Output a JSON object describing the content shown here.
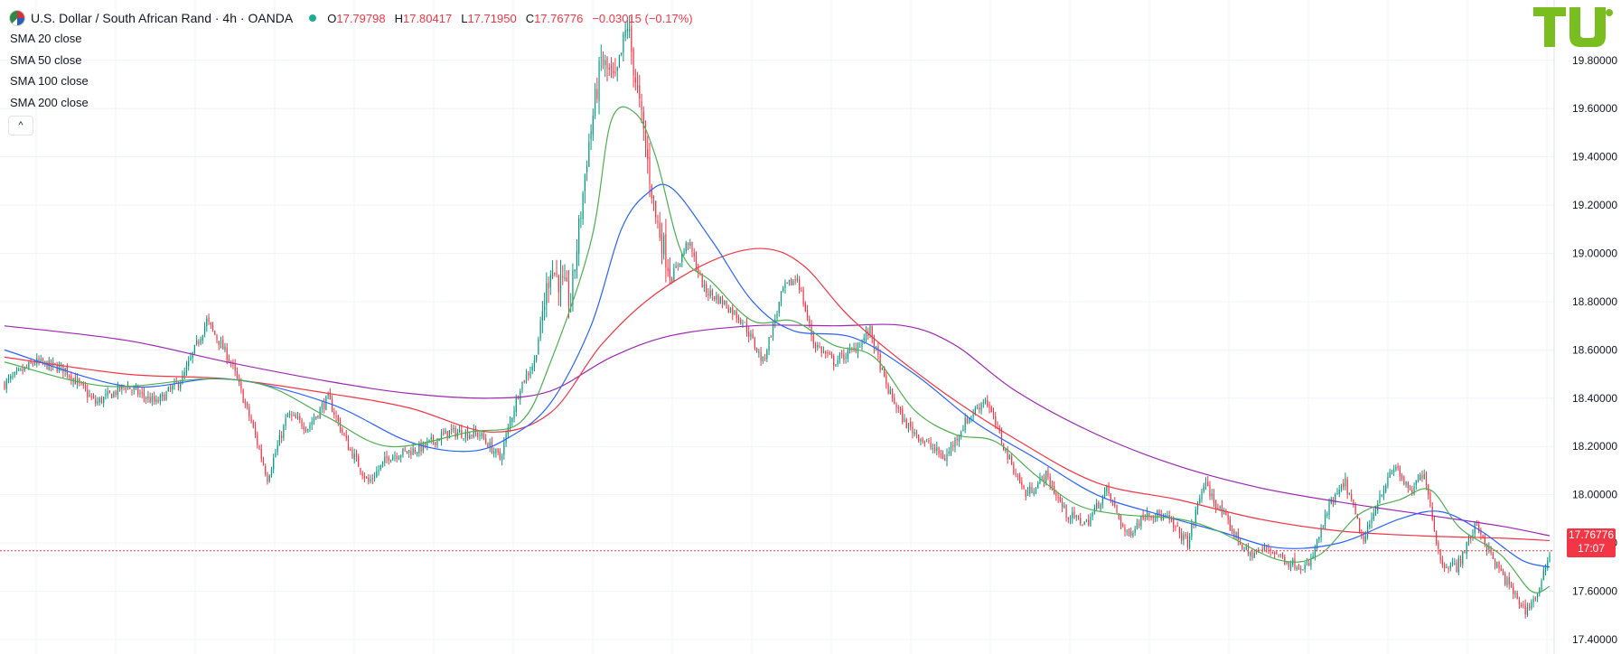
{
  "header": {
    "symbol_title": "U.S. Dollar / South African Rand · 4h · OANDA",
    "open_key": "O",
    "open": "17.79798",
    "high_key": "H",
    "high": "17.80417",
    "low_key": "L",
    "low": "17.71950",
    "close_key": "C",
    "close": "17.76776",
    "change": "−0.03015 (−0.17%)"
  },
  "indicators": [
    "SMA 20 close",
    "SMA 50 close",
    "SMA 100 close",
    "SMA 200 close"
  ],
  "collapse_label": "^",
  "price_tag": {
    "price": "17.76776",
    "countdown": "17:07"
  },
  "colors": {
    "up": "#089981",
    "down": "#f23645",
    "sma20": "#4caf50",
    "sma50": "#2962ff",
    "sma100": "#f23645",
    "sma200": "#9c27b0",
    "logo": "#79bd1e"
  },
  "chart_data": {
    "type": "candlestick",
    "y_ticks": [
      "17.40000",
      "17.60000",
      "17.80000",
      "18.00000",
      "18.20000",
      "18.40000",
      "18.60000",
      "18.80000",
      "19.00000",
      "19.20000",
      "19.40000",
      "19.60000",
      "19.80000"
    ],
    "ylim": [
      17.34,
      20.05
    ],
    "grid": true,
    "last_price": 17.76776,
    "anchor_closes": [
      [
        0,
        18.46
      ],
      [
        15,
        18.55
      ],
      [
        30,
        18.52
      ],
      [
        45,
        18.38
      ],
      [
        60,
        18.45
      ],
      [
        75,
        18.38
      ],
      [
        88,
        18.48
      ],
      [
        100,
        18.72
      ],
      [
        112,
        18.55
      ],
      [
        122,
        18.3
      ],
      [
        130,
        18.07
      ],
      [
        140,
        18.33
      ],
      [
        150,
        18.28
      ],
      [
        160,
        18.4
      ],
      [
        170,
        18.2
      ],
      [
        180,
        18.05
      ],
      [
        190,
        18.16
      ],
      [
        205,
        18.19
      ],
      [
        220,
        18.26
      ],
      [
        235,
        18.25
      ],
      [
        245,
        18.15
      ],
      [
        255,
        18.45
      ],
      [
        262,
        18.55
      ],
      [
        270,
        18.95
      ],
      [
        280,
        18.8
      ],
      [
        288,
        19.4
      ],
      [
        295,
        19.8
      ],
      [
        302,
        19.7
      ],
      [
        308,
        19.95
      ],
      [
        315,
        19.55
      ],
      [
        322,
        19.15
      ],
      [
        330,
        18.9
      ],
      [
        338,
        19.05
      ],
      [
        346,
        18.85
      ],
      [
        355,
        18.8
      ],
      [
        365,
        18.72
      ],
      [
        375,
        18.55
      ],
      [
        385,
        18.85
      ],
      [
        392,
        18.9
      ],
      [
        400,
        18.63
      ],
      [
        410,
        18.55
      ],
      [
        420,
        18.6
      ],
      [
        428,
        18.68
      ],
      [
        436,
        18.45
      ],
      [
        445,
        18.3
      ],
      [
        455,
        18.22
      ],
      [
        465,
        18.15
      ],
      [
        475,
        18.3
      ],
      [
        485,
        18.4
      ],
      [
        495,
        18.18
      ],
      [
        505,
        18.0
      ],
      [
        515,
        18.08
      ],
      [
        525,
        17.92
      ],
      [
        535,
        17.88
      ],
      [
        545,
        18.02
      ],
      [
        555,
        17.83
      ],
      [
        565,
        17.93
      ],
      [
        575,
        17.9
      ],
      [
        585,
        17.8
      ],
      [
        593,
        18.05
      ],
      [
        605,
        17.88
      ],
      [
        615,
        17.75
      ],
      [
        625,
        17.78
      ],
      [
        635,
        17.72
      ],
      [
        645,
        17.7
      ],
      [
        655,
        17.95
      ],
      [
        663,
        18.05
      ],
      [
        672,
        17.8
      ],
      [
        680,
        18.0
      ],
      [
        688,
        18.12
      ],
      [
        695,
        18.0
      ],
      [
        702,
        18.1
      ],
      [
        710,
        17.72
      ],
      [
        718,
        17.7
      ],
      [
        728,
        17.88
      ],
      [
        736,
        17.73
      ],
      [
        744,
        17.62
      ],
      [
        752,
        17.52
      ],
      [
        759,
        17.6
      ],
      [
        764,
        17.77
      ]
    ],
    "sma20_points": [
      [
        0,
        18.55
      ],
      [
        50,
        18.45
      ],
      [
        100,
        18.48
      ],
      [
        130,
        18.45
      ],
      [
        160,
        18.32
      ],
      [
        190,
        18.2
      ],
      [
        230,
        18.26
      ],
      [
        255,
        18.3
      ],
      [
        270,
        18.55
      ],
      [
        290,
        19.05
      ],
      [
        300,
        19.55
      ],
      [
        312,
        19.58
      ],
      [
        322,
        19.4
      ],
      [
        335,
        19.0
      ],
      [
        350,
        18.88
      ],
      [
        370,
        18.72
      ],
      [
        390,
        18.72
      ],
      [
        410,
        18.62
      ],
      [
        430,
        18.57
      ],
      [
        450,
        18.35
      ],
      [
        470,
        18.25
      ],
      [
        490,
        18.22
      ],
      [
        510,
        18.08
      ],
      [
        530,
        17.96
      ],
      [
        550,
        17.92
      ],
      [
        580,
        17.9
      ],
      [
        600,
        17.85
      ],
      [
        630,
        17.73
      ],
      [
        650,
        17.75
      ],
      [
        670,
        17.92
      ],
      [
        690,
        17.98
      ],
      [
        705,
        18.02
      ],
      [
        720,
        17.86
      ],
      [
        740,
        17.75
      ],
      [
        755,
        17.6
      ],
      [
        764,
        17.62
      ]
    ],
    "sma50_points": [
      [
        0,
        18.6
      ],
      [
        60,
        18.45
      ],
      [
        110,
        18.48
      ],
      [
        160,
        18.38
      ],
      [
        200,
        18.22
      ],
      [
        230,
        18.18
      ],
      [
        250,
        18.24
      ],
      [
        270,
        18.38
      ],
      [
        290,
        18.7
      ],
      [
        305,
        19.1
      ],
      [
        318,
        19.25
      ],
      [
        330,
        19.27
      ],
      [
        350,
        19.05
      ],
      [
        370,
        18.8
      ],
      [
        390,
        18.68
      ],
      [
        420,
        18.65
      ],
      [
        450,
        18.5
      ],
      [
        480,
        18.3
      ],
      [
        510,
        18.15
      ],
      [
        540,
        18.0
      ],
      [
        570,
        17.92
      ],
      [
        600,
        17.85
      ],
      [
        630,
        17.78
      ],
      [
        660,
        17.8
      ],
      [
        690,
        17.9
      ],
      [
        710,
        17.93
      ],
      [
        730,
        17.85
      ],
      [
        750,
        17.73
      ],
      [
        764,
        17.7
      ]
    ],
    "sma100_points": [
      [
        0,
        18.57
      ],
      [
        60,
        18.5
      ],
      [
        110,
        18.48
      ],
      [
        160,
        18.42
      ],
      [
        200,
        18.36
      ],
      [
        240,
        18.26
      ],
      [
        270,
        18.34
      ],
      [
        295,
        18.62
      ],
      [
        320,
        18.82
      ],
      [
        350,
        18.97
      ],
      [
        375,
        19.02
      ],
      [
        395,
        18.95
      ],
      [
        420,
        18.72
      ],
      [
        460,
        18.45
      ],
      [
        500,
        18.23
      ],
      [
        540,
        18.05
      ],
      [
        580,
        17.98
      ],
      [
        620,
        17.9
      ],
      [
        660,
        17.85
      ],
      [
        700,
        17.83
      ],
      [
        740,
        17.82
      ],
      [
        764,
        17.81
      ]
    ],
    "sma200_points": [
      [
        0,
        18.7
      ],
      [
        60,
        18.64
      ],
      [
        110,
        18.55
      ],
      [
        160,
        18.47
      ],
      [
        200,
        18.42
      ],
      [
        240,
        18.4
      ],
      [
        270,
        18.43
      ],
      [
        300,
        18.57
      ],
      [
        330,
        18.66
      ],
      [
        370,
        18.7
      ],
      [
        410,
        18.7
      ],
      [
        445,
        18.7
      ],
      [
        470,
        18.62
      ],
      [
        500,
        18.43
      ],
      [
        540,
        18.25
      ],
      [
        580,
        18.12
      ],
      [
        620,
        18.03
      ],
      [
        660,
        17.97
      ],
      [
        700,
        17.92
      ],
      [
        740,
        17.87
      ],
      [
        764,
        17.83
      ]
    ]
  }
}
